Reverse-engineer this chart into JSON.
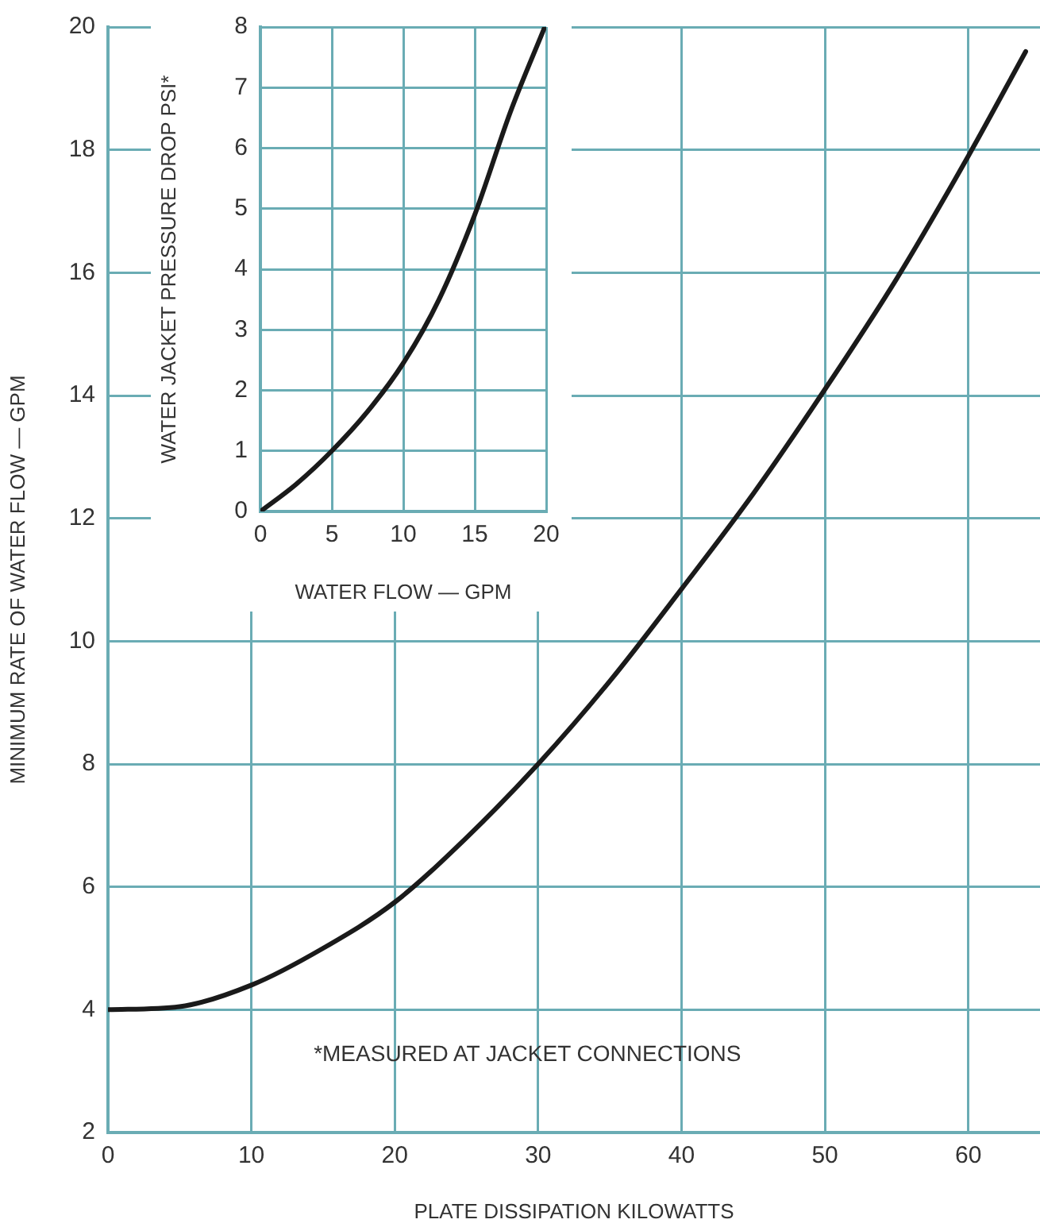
{
  "chart_data": [
    {
      "type": "line",
      "xlabel": "PLATE DISSIPATION KILOWATTS",
      "ylabel": "MINIMUM RATE OF WATER FLOW — GPM",
      "x": [
        0,
        5,
        10,
        15,
        20,
        25,
        30,
        35,
        40,
        45,
        50,
        55,
        60,
        64
      ],
      "series": [
        {
          "color": "#1a1a1a",
          "values": [
            4,
            4.05,
            4.4,
            5,
            5.75,
            6.8,
            8,
            9.35,
            10.85,
            12.4,
            14.1,
            15.9,
            17.9,
            19.6
          ]
        }
      ],
      "xlim": [
        0,
        65
      ],
      "xticks": [
        0,
        10,
        20,
        30,
        40,
        50,
        60
      ],
      "ylim": [
        2,
        20
      ],
      "yticks": [
        2,
        4,
        6,
        8,
        10,
        12,
        14,
        16,
        18,
        20
      ],
      "grid": true,
      "legend": false,
      "marker": "none",
      "line_style": "solid",
      "annotations": [
        "*MEASURED AT JACKET CONNECTIONS"
      ]
    },
    {
      "type": "line",
      "xlabel": "WATER FLOW — GPM",
      "ylabel": "WATER JACKET PRESSURE DROP PSI*",
      "x": [
        0,
        2.5,
        5,
        7.5,
        10,
        12.5,
        15,
        17.5,
        19.9
      ],
      "series": [
        {
          "color": "#1a1a1a",
          "values": [
            0,
            0.45,
            1,
            1.65,
            2.45,
            3.5,
            4.9,
            6.6,
            8
          ]
        }
      ],
      "xlim": [
        0,
        20
      ],
      "xticks": [
        0,
        5,
        10,
        15,
        20
      ],
      "ylim": [
        0,
        8
      ],
      "yticks": [
        0,
        1,
        2,
        3,
        4,
        5,
        6,
        7,
        8
      ],
      "grid": true,
      "legend": false,
      "marker": "none",
      "line_style": "solid"
    }
  ]
}
